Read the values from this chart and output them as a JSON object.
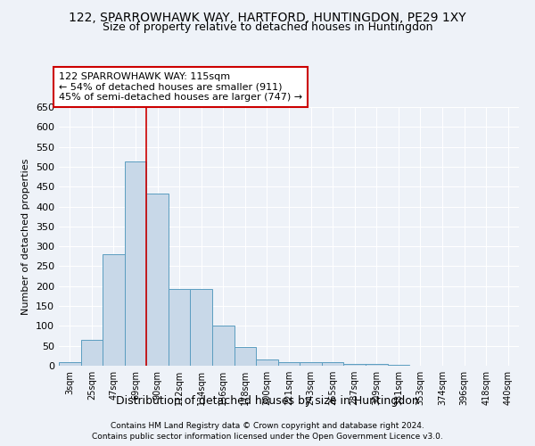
{
  "title": "122, SPARROWHAWK WAY, HARTFORD, HUNTINGDON, PE29 1XY",
  "subtitle": "Size of property relative to detached houses in Huntingdon",
  "xlabel": "Distribution of detached houses by size in Huntingdon",
  "ylabel": "Number of detached properties",
  "footnote1": "Contains HM Land Registry data © Crown copyright and database right 2024.",
  "footnote2": "Contains public sector information licensed under the Open Government Licence v3.0.",
  "bar_labels": [
    "3sqm",
    "25sqm",
    "47sqm",
    "69sqm",
    "90sqm",
    "112sqm",
    "134sqm",
    "156sqm",
    "178sqm",
    "200sqm",
    "221sqm",
    "243sqm",
    "265sqm",
    "287sqm",
    "309sqm",
    "331sqm",
    "353sqm",
    "374sqm",
    "396sqm",
    "418sqm",
    "440sqm"
  ],
  "bar_values": [
    10,
    65,
    280,
    513,
    432,
    192,
    192,
    100,
    46,
    15,
    10,
    10,
    8,
    5,
    4,
    3,
    1,
    0,
    1,
    0,
    1
  ],
  "bar_color": "#c8d8e8",
  "bar_edge_color": "#5b9dc0",
  "property_label": "122 SPARROWHAWK WAY: 115sqm",
  "pct_smaller": 54,
  "pct_smaller_count": 911,
  "pct_larger_semi": 45,
  "pct_larger_semi_count": 747,
  "vline_color": "#cc0000",
  "vline_x": 3.5,
  "annotation_box_color": "#cc0000",
  "ylim": [
    0,
    650
  ],
  "yticks": [
    0,
    50,
    100,
    150,
    200,
    250,
    300,
    350,
    400,
    450,
    500,
    550,
    600,
    650
  ],
  "background_color": "#eef2f8",
  "grid_color": "#ffffff",
  "title_fontsize": 10,
  "subtitle_fontsize": 9,
  "ylabel_fontsize": 8,
  "xlabel_fontsize": 9
}
